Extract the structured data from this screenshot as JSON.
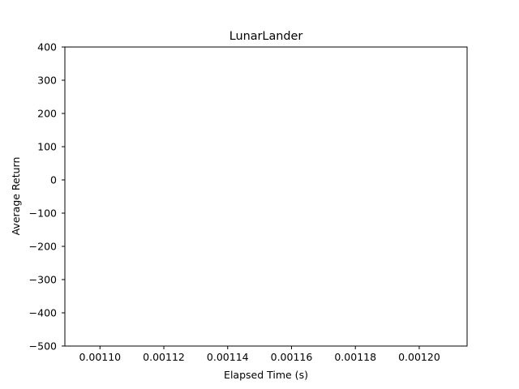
{
  "chart_data": {
    "type": "line",
    "title": "LunarLander",
    "xlabel": "Elapsed Time (s)",
    "ylabel": "Average Return",
    "xlim": [
      0.001089,
      0.001215
    ],
    "ylim": [
      -500,
      400
    ],
    "x_ticks": [
      0.0011,
      0.00112,
      0.00114,
      0.00116,
      0.00118,
      0.0012
    ],
    "x_tick_labels": [
      "0.00110",
      "0.00112",
      "0.00114",
      "0.00116",
      "0.00118",
      "0.00120"
    ],
    "y_ticks": [
      400,
      300,
      200,
      100,
      0,
      -100,
      -200,
      -300,
      -400,
      -500
    ],
    "y_tick_labels": [
      "400",
      "300",
      "200",
      "100",
      "0",
      "−100",
      "−200",
      "−300",
      "−400",
      "−500"
    ],
    "series": [],
    "grid": false,
    "legend": "none"
  }
}
